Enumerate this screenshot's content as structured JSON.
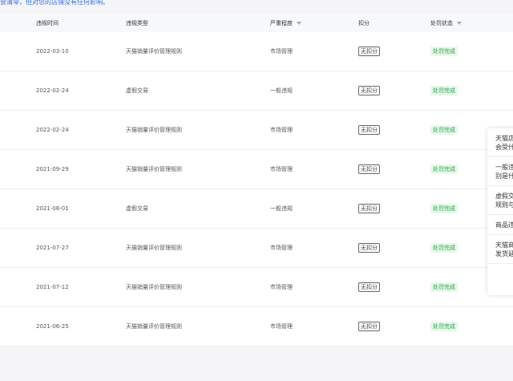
{
  "notice": "会清零，但对您的店铺没有任何影响。",
  "table": {
    "headers": [
      "违规时间",
      "违规类型",
      "严重程度",
      "扣分",
      "处罚状态"
    ],
    "rows": [
      [
        "2022-03-10",
        "天猫销量评价管理规则",
        "市场管理",
        "无扣分",
        "处罚完成"
      ],
      [
        "2022-02-24",
        "虚假交易",
        "一般违规",
        "无扣分",
        "处罚完成"
      ],
      [
        "2022-02-24",
        "天猫销量评价管理规则",
        "市场管理",
        "无扣分",
        "处罚完成"
      ],
      [
        "2021-09-29",
        "天猫销量评价管理规则",
        "市场管理",
        "无扣分",
        "处罚完成"
      ],
      [
        "2021-08-01",
        "虚假交易",
        "一般违规",
        "无扣分",
        "处罚完成"
      ],
      [
        "2021-07-27",
        "天猫销量评价管理规则",
        "市场管理",
        "无扣分",
        "处罚完成"
      ],
      [
        "2021-07-12",
        "天猫销量评价管理规则",
        "市场管理",
        "无扣分",
        "处罚完成"
      ],
      [
        "2021-06-25",
        "天猫销量评价管理规则",
        "市场管理",
        "无扣分",
        "处罚完成"
      ]
    ]
  },
  "popup": {
    "items": [
      [
        "天猫店",
        "会受什"
      ],
      [
        "一般违",
        "别是什"
      ],
      [
        "虚假交",
        "规则与"
      ],
      [
        "商品违"
      ],
      [
        "天猫商",
        "发货延"
      ]
    ]
  }
}
